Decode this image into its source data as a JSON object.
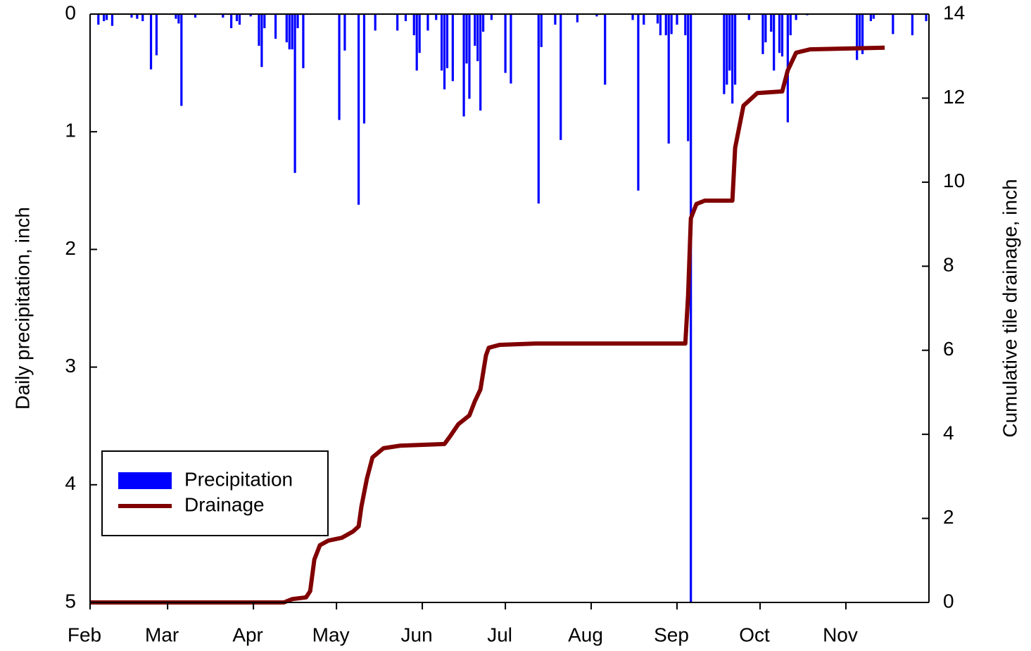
{
  "chart_data": {
    "type": "bar",
    "ylabel": "Daily precipitation, inch",
    "y2label": "Cumulative tile drainage, inch",
    "xlim": [
      0,
      303
    ],
    "xticks": [
      {
        "value": 0,
        "label": "Feb"
      },
      {
        "value": 28,
        "label": "Mar"
      },
      {
        "value": 59,
        "label": "Apr"
      },
      {
        "value": 89,
        "label": "May"
      },
      {
        "value": 120,
        "label": "Jun"
      },
      {
        "value": 150,
        "label": "Jul"
      },
      {
        "value": 181,
        "label": "Aug"
      },
      {
        "value": 212,
        "label": "Sep"
      },
      {
        "value": 242,
        "label": "Oct"
      },
      {
        "value": 273,
        "label": "Nov"
      }
    ],
    "ylim": [
      0,
      5
    ],
    "yticks": [
      0,
      1,
      2,
      3,
      4,
      5
    ],
    "y_inverted": true,
    "y2lim": [
      0,
      14
    ],
    "y2ticks": [
      0,
      2,
      4,
      6,
      8,
      10,
      12,
      14
    ],
    "legend": "lower left",
    "series": [
      {
        "name": "Precipitation",
        "type": "bar",
        "color": "#0000ff",
        "x": [
          3,
          5,
          6,
          8,
          15,
          17,
          19,
          22,
          24,
          31,
          32,
          33,
          38,
          48,
          51,
          53,
          54,
          58,
          61,
          62,
          63,
          67,
          71,
          72,
          73,
          74,
          75,
          77,
          90,
          92,
          97,
          99,
          103,
          111,
          114,
          117,
          118,
          119,
          122,
          125,
          127,
          128,
          129,
          131,
          135,
          136,
          137,
          139,
          140,
          141,
          142,
          145,
          150,
          152,
          162,
          163,
          168,
          170,
          176,
          183,
          186,
          196,
          198,
          200,
          205,
          206,
          208,
          209,
          210,
          212,
          215,
          216,
          217,
          229,
          230,
          231,
          232,
          233,
          238,
          243,
          244,
          246,
          247,
          249,
          250,
          252,
          253,
          255,
          259,
          277,
          278,
          279,
          282,
          283,
          290,
          297,
          302
        ],
        "values": [
          0.09,
          0.06,
          0.05,
          0.1,
          0.03,
          0.04,
          0.06,
          0.47,
          0.35,
          0.04,
          0.08,
          0.78,
          0.03,
          0.03,
          0.12,
          0.06,
          0.09,
          0.02,
          0.27,
          0.45,
          0.12,
          0.21,
          0.24,
          0.3,
          0.3,
          1.35,
          0.12,
          0.46,
          0.9,
          0.31,
          1.62,
          0.93,
          0.14,
          0.14,
          0.06,
          0.18,
          0.48,
          0.33,
          0.14,
          0.05,
          0.48,
          0.64,
          0.46,
          0.57,
          0.87,
          0.42,
          0.72,
          0.27,
          0.4,
          0.82,
          0.15,
          0.05,
          0.5,
          0.59,
          1.61,
          0.28,
          0.09,
          1.07,
          0.07,
          0.02,
          0.6,
          0.05,
          1.5,
          0.09,
          0.08,
          0.18,
          0.18,
          1.1,
          0.17,
          0.09,
          0.18,
          1.08,
          5.0,
          0.68,
          0.6,
          0.48,
          0.76,
          0.6,
          0.05,
          0.34,
          0.24,
          0.15,
          0.48,
          0.33,
          0.36,
          0.92,
          0.18,
          0.05,
          0.01,
          0.39,
          0.3,
          0.34,
          0.06,
          0.04,
          0.17,
          0.18,
          0.06
        ]
      },
      {
        "name": "Drainage",
        "type": "line",
        "axis": "y2",
        "color": "#800000",
        "x": [
          0,
          70,
          73,
          78,
          79.5,
          81,
          83,
          86,
          91,
          95,
          97,
          98,
          100,
          102,
          106,
          112,
          128,
          130,
          133,
          137,
          139,
          141,
          143,
          144,
          148,
          161,
          215,
          216,
          217,
          219,
          222,
          232,
          233,
          236,
          241,
          250,
          252,
          255,
          260,
          287
        ],
        "values": [
          0,
          0,
          0.08,
          0.12,
          0.27,
          1.02,
          1.36,
          1.47,
          1.54,
          1.69,
          1.81,
          2.28,
          2.95,
          3.45,
          3.67,
          3.73,
          3.77,
          3.95,
          4.24,
          4.45,
          4.79,
          5.07,
          5.88,
          6.06,
          6.13,
          6.16,
          6.16,
          7.3,
          9.14,
          9.48,
          9.56,
          9.56,
          10.82,
          11.82,
          12.12,
          12.16,
          12.66,
          13.08,
          13.16,
          13.2
        ]
      }
    ]
  }
}
